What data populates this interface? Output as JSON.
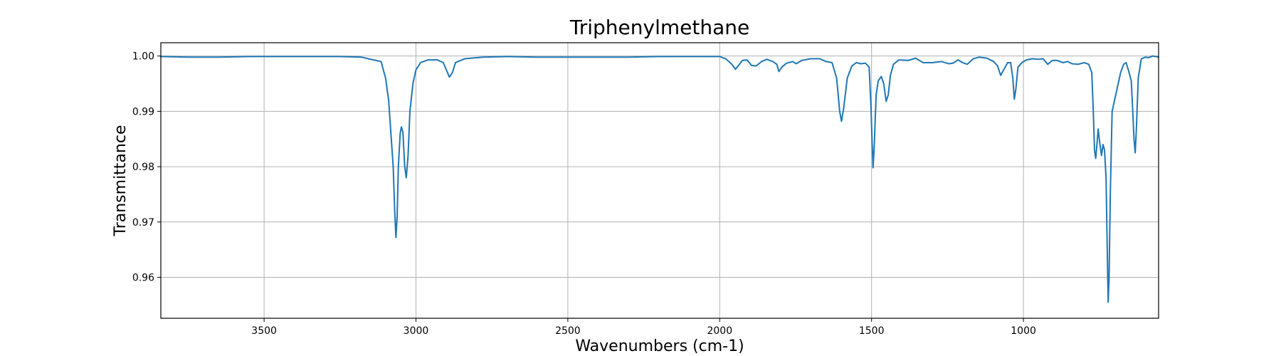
{
  "chart_data": {
    "type": "line",
    "title": "Triphenylmethane",
    "xlabel": "Wavenumbers (cm-1)",
    "ylabel": "Transmittance",
    "xlim": [
      3840,
      555
    ],
    "ylim": [
      0.9526,
      1.0024
    ],
    "x_inverted": true,
    "grid": true,
    "xticks": [
      3500,
      3000,
      2500,
      2000,
      1500,
      1000
    ],
    "yticks": [
      0.96,
      0.97,
      0.98,
      0.99,
      1.0
    ],
    "ytick_labels": [
      "0.96",
      "0.97",
      "0.98",
      "0.99",
      "1.00"
    ],
    "series": [
      {
        "color": "#1f77b4",
        "points": [
          [
            3840,
            0.9999
          ],
          [
            3750,
            0.9998
          ],
          [
            3650,
            0.9998
          ],
          [
            3550,
            0.9999
          ],
          [
            3450,
            0.9999
          ],
          [
            3350,
            0.9999
          ],
          [
            3250,
            0.9999
          ],
          [
            3180,
            0.9998
          ],
          [
            3140,
            0.9993
          ],
          [
            3115,
            0.999
          ],
          [
            3100,
            0.996
          ],
          [
            3090,
            0.992
          ],
          [
            3080,
            0.984
          ],
          [
            3075,
            0.98
          ],
          [
            3070,
            0.972
          ],
          [
            3066,
            0.9672
          ],
          [
            3062,
            0.971
          ],
          [
            3058,
            0.98
          ],
          [
            3052,
            0.986
          ],
          [
            3048,
            0.9872
          ],
          [
            3043,
            0.9862
          ],
          [
            3037,
            0.98
          ],
          [
            3032,
            0.978
          ],
          [
            3026,
            0.982
          ],
          [
            3020,
            0.99
          ],
          [
            3010,
            0.995
          ],
          [
            3000,
            0.9975
          ],
          [
            2985,
            0.9988
          ],
          [
            2960,
            0.9993
          ],
          [
            2930,
            0.9993
          ],
          [
            2910,
            0.9988
          ],
          [
            2900,
            0.9975
          ],
          [
            2890,
            0.9962
          ],
          [
            2880,
            0.997
          ],
          [
            2870,
            0.9988
          ],
          [
            2840,
            0.9995
          ],
          [
            2780,
            0.9998
          ],
          [
            2700,
            0.9999
          ],
          [
            2600,
            0.9998
          ],
          [
            2500,
            0.9998
          ],
          [
            2400,
            0.9998
          ],
          [
            2300,
            0.9998
          ],
          [
            2200,
            0.9999
          ],
          [
            2100,
            0.9999
          ],
          [
            2000,
            0.9999
          ],
          [
            1980,
            0.9995
          ],
          [
            1960,
            0.9985
          ],
          [
            1948,
            0.9976
          ],
          [
            1938,
            0.9983
          ],
          [
            1925,
            0.9992
          ],
          [
            1910,
            0.9993
          ],
          [
            1895,
            0.9983
          ],
          [
            1880,
            0.9982
          ],
          [
            1862,
            0.999
          ],
          [
            1845,
            0.9994
          ],
          [
            1825,
            0.999
          ],
          [
            1812,
            0.9985
          ],
          [
            1805,
            0.9972
          ],
          [
            1795,
            0.998
          ],
          [
            1780,
            0.9987
          ],
          [
            1760,
            0.999
          ],
          [
            1748,
            0.9986
          ],
          [
            1730,
            0.9992
          ],
          [
            1700,
            0.9995
          ],
          [
            1670,
            0.9995
          ],
          [
            1650,
            0.999
          ],
          [
            1630,
            0.9988
          ],
          [
            1615,
            0.996
          ],
          [
            1605,
            0.99
          ],
          [
            1599,
            0.9882
          ],
          [
            1592,
            0.9905
          ],
          [
            1580,
            0.996
          ],
          [
            1565,
            0.9982
          ],
          [
            1550,
            0.9988
          ],
          [
            1535,
            0.9986
          ],
          [
            1520,
            0.9987
          ],
          [
            1508,
            0.998
          ],
          [
            1502,
            0.991
          ],
          [
            1498,
            0.984
          ],
          [
            1495,
            0.9798
          ],
          [
            1491,
            0.984
          ],
          [
            1485,
            0.993
          ],
          [
            1478,
            0.9955
          ],
          [
            1468,
            0.9963
          ],
          [
            1460,
            0.995
          ],
          [
            1452,
            0.9918
          ],
          [
            1445,
            0.993
          ],
          [
            1438,
            0.9965
          ],
          [
            1428,
            0.9985
          ],
          [
            1410,
            0.9993
          ],
          [
            1380,
            0.9992
          ],
          [
            1355,
            0.9996
          ],
          [
            1330,
            0.9988
          ],
          [
            1300,
            0.9988
          ],
          [
            1270,
            0.999
          ],
          [
            1245,
            0.9986
          ],
          [
            1232,
            0.9987
          ],
          [
            1215,
            0.9993
          ],
          [
            1200,
            0.9988
          ],
          [
            1185,
            0.9985
          ],
          [
            1165,
            0.9995
          ],
          [
            1145,
            0.9998
          ],
          [
            1120,
            0.9996
          ],
          [
            1098,
            0.999
          ],
          [
            1085,
            0.9982
          ],
          [
            1075,
            0.9965
          ],
          [
            1065,
            0.9975
          ],
          [
            1052,
            0.9988
          ],
          [
            1042,
            0.9988
          ],
          [
            1035,
            0.996
          ],
          [
            1030,
            0.9922
          ],
          [
            1025,
            0.994
          ],
          [
            1018,
            0.998
          ],
          [
            1005,
            0.9988
          ],
          [
            990,
            0.9993
          ],
          [
            970,
            0.9995
          ],
          [
            950,
            0.9994
          ],
          [
            935,
            0.9995
          ],
          [
            920,
            0.9985
          ],
          [
            905,
            0.9992
          ],
          [
            890,
            0.9992
          ],
          [
            870,
            0.9988
          ],
          [
            855,
            0.999
          ],
          [
            840,
            0.9986
          ],
          [
            820,
            0.9985
          ],
          [
            800,
            0.9988
          ],
          [
            785,
            0.9985
          ],
          [
            775,
            0.997
          ],
          [
            770,
            0.99
          ],
          [
            766,
            0.983
          ],
          [
            762,
            0.9815
          ],
          [
            758,
            0.984
          ],
          [
            754,
            0.9868
          ],
          [
            748,
            0.984
          ],
          [
            743,
            0.982
          ],
          [
            738,
            0.984
          ],
          [
            733,
            0.983
          ],
          [
            728,
            0.978
          ],
          [
            724,
            0.965
          ],
          [
            721,
            0.9555
          ],
          [
            718,
            0.96
          ],
          [
            714,
            0.975
          ],
          [
            708,
            0.99
          ],
          [
            700,
            0.992
          ],
          [
            690,
            0.9945
          ],
          [
            680,
            0.997
          ],
          [
            670,
            0.9985
          ],
          [
            662,
            0.9988
          ],
          [
            652,
            0.997
          ],
          [
            645,
            0.9955
          ],
          [
            640,
            0.99
          ],
          [
            636,
            0.985
          ],
          [
            632,
            0.9825
          ],
          [
            628,
            0.987
          ],
          [
            622,
            0.996
          ],
          [
            612,
            0.9995
          ],
          [
            598,
            0.9998
          ],
          [
            588,
            0.9997
          ],
          [
            575,
            1.0
          ],
          [
            565,
            0.9999
          ],
          [
            555,
            0.9998
          ]
        ]
      }
    ]
  }
}
